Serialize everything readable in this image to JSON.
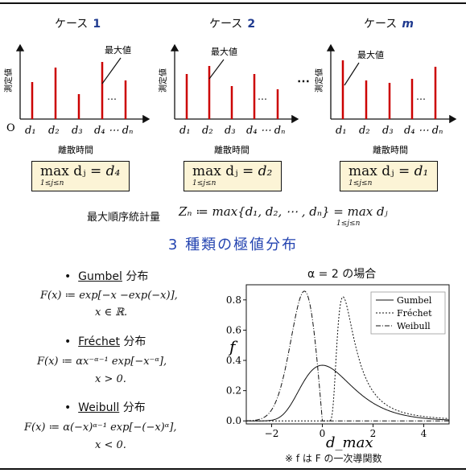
{
  "cases": [
    {
      "title": "ケース",
      "number": "1",
      "annotation": "最大値",
      "box_rhs": "= d₄"
    },
    {
      "title": "ケース",
      "number": "2",
      "annotation": "最大値",
      "box_rhs": "= d₂"
    },
    {
      "title": "ケース",
      "number": "m",
      "annotation": "最大値",
      "box_rhs": "= d₁"
    }
  ],
  "stem_axis": {
    "ylabel": "測定値",
    "xlabel": "離散時間",
    "origin": "O",
    "ellipsis": "…",
    "ticks": [
      "d₁",
      "d₂",
      "d₃",
      "d₄ ⋯ dₙ"
    ]
  },
  "between_ellipsis": "⋯",
  "max_box": {
    "operator": "max dⱼ",
    "subscript": "1≤j≤n"
  },
  "statistic": {
    "label": "最大順序統計量",
    "formula": "Zₙ ≔ max{d₁, d₂, ⋯ , dₙ} = max dⱼ",
    "subscript": "1≤j≤n"
  },
  "section_title": "3 種類の極値分布",
  "distributions": [
    {
      "bullet": "•",
      "name": "Gumbel",
      "suffix": "分布",
      "lines": [
        "F(x) ≔ exp[−x −exp(−x)],",
        "x ∈ ℝ."
      ]
    },
    {
      "bullet": "•",
      "name": "Fréchet",
      "suffix": "分布",
      "lines": [
        "F(x) ≔ αx⁻ᵅ⁻¹ exp[−x⁻ᵅ],",
        "x > 0."
      ]
    },
    {
      "bullet": "•",
      "name": "Weibull",
      "suffix": "分布",
      "lines": [
        "F(x) ≔ α(−x)ᵅ⁻¹ exp[−(−x)ᵅ],",
        "x < 0."
      ]
    }
  ],
  "chart_data": {
    "type": "line",
    "title": "α = 2 の場合",
    "xlabel": "d_max",
    "ylabel": "f",
    "xlim": [
      -3,
      5
    ],
    "ylim": [
      -0.02,
      0.9
    ],
    "x_ticks": [
      "−2",
      "0",
      "2",
      "4"
    ],
    "y_ticks": [
      "0.0",
      "0.2",
      "0.4",
      "0.6",
      "0.8"
    ],
    "legend_position": "top-right",
    "series": [
      {
        "name": "Gumbel",
        "style": "solid",
        "function": "exp(-x-exp(-x))"
      },
      {
        "name": "Fréchet",
        "style": "dashed",
        "function": "2*x^-3*exp(-x^-2), x>0"
      },
      {
        "name": "Weibull",
        "style": "dash-dot",
        "function": "2*(-x)*exp(-(-x)^2), x<0"
      }
    ]
  },
  "footnote": "※ f は F の一次導関数"
}
